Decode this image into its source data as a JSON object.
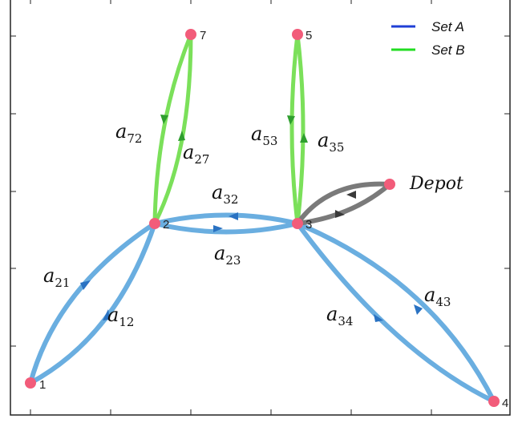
{
  "legend": {
    "items": [
      {
        "label": "Set A",
        "color": "#1f3fd6"
      },
      {
        "label": "Set B",
        "color": "#22dd22"
      }
    ]
  },
  "depot_label": "Depot",
  "colors": {
    "edge_blue": "#6aaee0",
    "edge_green": "#7be05a",
    "edge_gray": "#7a7a7a",
    "node": "#f25c7a",
    "arrow_blue": "#2a72c2",
    "arrow_green": "#2e9e2e",
    "arrow_gray": "#3a3a3a"
  },
  "nodes": [
    {
      "id": "1",
      "label": "1"
    },
    {
      "id": "2",
      "label": "2"
    },
    {
      "id": "3",
      "label": "3"
    },
    {
      "id": "4",
      "label": "4"
    },
    {
      "id": "5",
      "label": "5"
    },
    {
      "id": "7",
      "label": "7"
    },
    {
      "id": "depot",
      "label": ""
    }
  ],
  "edges": [
    {
      "from": "1",
      "to": "2",
      "label": "a",
      "sub": "12",
      "set": "blue"
    },
    {
      "from": "2",
      "to": "1",
      "label": "a",
      "sub": "21",
      "set": "blue"
    },
    {
      "from": "2",
      "to": "3",
      "label": "a",
      "sub": "23",
      "set": "blue"
    },
    {
      "from": "3",
      "to": "2",
      "label": "a",
      "sub": "32",
      "set": "blue"
    },
    {
      "from": "3",
      "to": "4",
      "label": "a",
      "sub": "34",
      "set": "blue"
    },
    {
      "from": "4",
      "to": "3",
      "label": "a",
      "sub": "43",
      "set": "blue"
    },
    {
      "from": "2",
      "to": "7",
      "label": "a",
      "sub": "27",
      "set": "green"
    },
    {
      "from": "7",
      "to": "2",
      "label": "a",
      "sub": "72",
      "set": "green"
    },
    {
      "from": "3",
      "to": "5",
      "label": "a",
      "sub": "35",
      "set": "green"
    },
    {
      "from": "5",
      "to": "3",
      "label": "a",
      "sub": "53",
      "set": "green"
    },
    {
      "from": "3",
      "to": "depot",
      "label": "",
      "sub": "",
      "set": "gray"
    },
    {
      "from": "depot",
      "to": "3",
      "label": "",
      "sub": "",
      "set": "gray"
    }
  ]
}
